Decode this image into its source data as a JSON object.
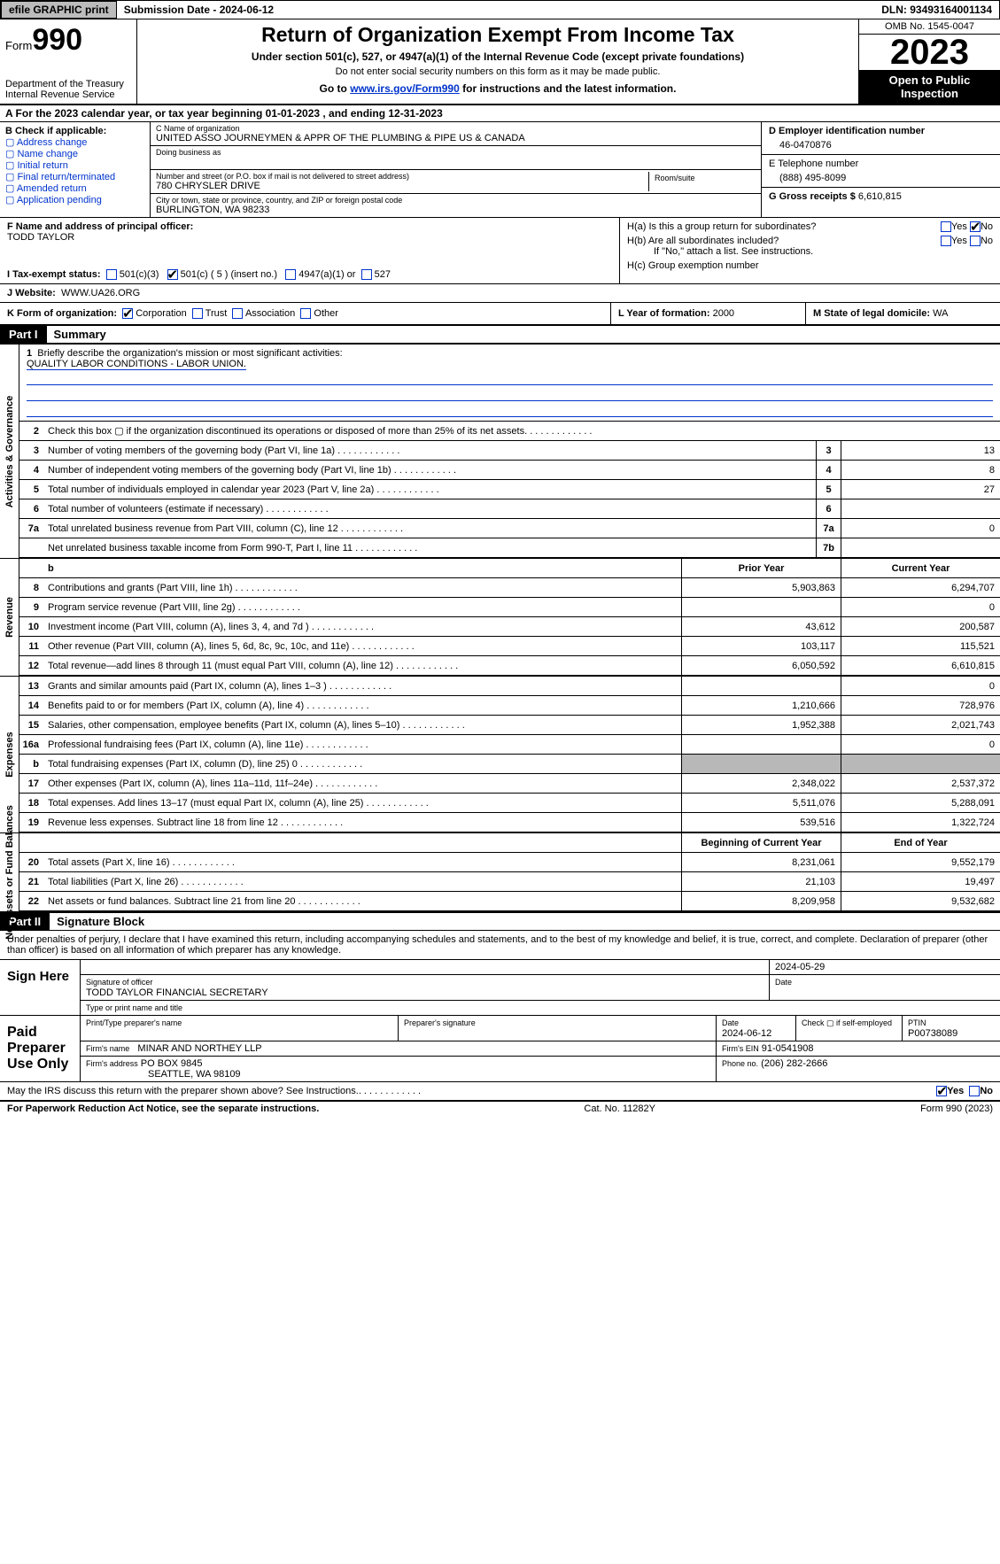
{
  "topbar": {
    "efile": "efile GRAPHIC print",
    "submission_label": "Submission Date - 2024-06-12",
    "dln_label": "DLN: 93493164001134"
  },
  "header": {
    "form_prefix": "Form",
    "form_number": "990",
    "dept": "Department of the Treasury\nInternal Revenue Service",
    "title": "Return of Organization Exempt From Income Tax",
    "sub": "Under section 501(c), 527, or 4947(a)(1) of the Internal Revenue Code (except private foundations)",
    "sub2": "Do not enter social security numbers on this form as it may be made public.",
    "goto_prefix": "Go to ",
    "goto_link": "www.irs.gov/Form990",
    "goto_suffix": " for instructions and the latest information.",
    "omb": "OMB No. 1545-0047",
    "year": "2023",
    "open": "Open to Public Inspection"
  },
  "rowA": "A For the 2023 calendar year, or tax year beginning 01-01-2023   , and ending 12-31-2023",
  "sectionB": {
    "title": "B Check if applicable:",
    "items": [
      "Address change",
      "Name change",
      "Initial return",
      "Final return/terminated",
      "Amended return",
      "Application pending"
    ]
  },
  "sectionC": {
    "name_label": "C Name of organization",
    "name": "UNITED ASSO JOURNEYMEN & APPR OF THE PLUMBING & PIPE US & CANADA",
    "dba": "Doing business as",
    "addr_label": "Number and street (or P.O. box if mail is not delivered to street address)",
    "room": "Room/suite",
    "addr": "780 CHRYSLER DRIVE",
    "city_label": "City or town, state or province, country, and ZIP or foreign postal code",
    "city": "BURLINGTON, WA  98233"
  },
  "sectionD": {
    "label": "D Employer identification number",
    "value": "46-0470876"
  },
  "sectionE": {
    "label": "E Telephone number",
    "value": "(888) 495-8099"
  },
  "sectionG": {
    "label": "G Gross receipts $",
    "value": "6,610,815"
  },
  "sectionF": {
    "label": "F  Name and address of principal officer:",
    "value": "TODD TAYLOR"
  },
  "sectionH": {
    "ha": "H(a)  Is this a group return for subordinates?",
    "hb": "H(b)  Are all subordinates included?",
    "hb_note": "If \"No,\" attach a list. See instructions.",
    "hc": "H(c)  Group exemption number",
    "yes": "Yes",
    "no": "No"
  },
  "sectionI": {
    "label": "I  Tax-exempt status:",
    "opts": [
      "501(c)(3)",
      "501(c) ( 5 ) (insert no.)",
      "4947(a)(1) or",
      "527"
    ],
    "checked_index": 1
  },
  "sectionJ": {
    "label": "J  Website:",
    "value": "WWW.UA26.ORG"
  },
  "sectionK": {
    "label": "K Form of organization:",
    "opts": [
      "Corporation",
      "Trust",
      "Association",
      "Other"
    ],
    "checked_index": 0
  },
  "sectionL": {
    "label": "L Year of formation:",
    "value": "2000"
  },
  "sectionM": {
    "label": "M State of legal domicile:",
    "value": "WA"
  },
  "part1": {
    "hdr": "Part I",
    "title": "Summary"
  },
  "mission": {
    "label": "Briefly describe the organization's mission or most significant activities:",
    "text": "QUALITY LABOR CONDITIONS - LABOR UNION."
  },
  "governance_lines": [
    {
      "n": "2",
      "desc": "Check this box  ▢  if the organization discontinued its operations or disposed of more than 25% of its net assets.",
      "box": "",
      "val": ""
    },
    {
      "n": "3",
      "desc": "Number of voting members of the governing body (Part VI, line 1a)",
      "box": "3",
      "val": "13"
    },
    {
      "n": "4",
      "desc": "Number of independent voting members of the governing body (Part VI, line 1b)",
      "box": "4",
      "val": "8"
    },
    {
      "n": "5",
      "desc": "Total number of individuals employed in calendar year 2023 (Part V, line 2a)",
      "box": "5",
      "val": "27"
    },
    {
      "n": "6",
      "desc": "Total number of volunteers (estimate if necessary)",
      "box": "6",
      "val": ""
    },
    {
      "n": "7a",
      "desc": "Total unrelated business revenue from Part VIII, column (C), line 12",
      "box": "7a",
      "val": "0"
    },
    {
      "n": "",
      "desc": "Net unrelated business taxable income from Form 990-T, Part I, line 11",
      "box": "7b",
      "val": ""
    }
  ],
  "revenue_header": {
    "prior": "Prior Year",
    "current": "Current Year"
  },
  "revenue_lines": [
    {
      "n": "8",
      "desc": "Contributions and grants (Part VIII, line 1h)",
      "prior": "5,903,863",
      "cur": "6,294,707"
    },
    {
      "n": "9",
      "desc": "Program service revenue (Part VIII, line 2g)",
      "prior": "",
      "cur": "0"
    },
    {
      "n": "10",
      "desc": "Investment income (Part VIII, column (A), lines 3, 4, and 7d )",
      "prior": "43,612",
      "cur": "200,587"
    },
    {
      "n": "11",
      "desc": "Other revenue (Part VIII, column (A), lines 5, 6d, 8c, 9c, 10c, and 11e)",
      "prior": "103,117",
      "cur": "115,521"
    },
    {
      "n": "12",
      "desc": "Total revenue—add lines 8 through 11 (must equal Part VIII, column (A), line 12)",
      "prior": "6,050,592",
      "cur": "6,610,815"
    }
  ],
  "expense_lines": [
    {
      "n": "13",
      "desc": "Grants and similar amounts paid (Part IX, column (A), lines 1–3 )",
      "prior": "",
      "cur": "0"
    },
    {
      "n": "14",
      "desc": "Benefits paid to or for members (Part IX, column (A), line 4)",
      "prior": "1,210,666",
      "cur": "728,976"
    },
    {
      "n": "15",
      "desc": "Salaries, other compensation, employee benefits (Part IX, column (A), lines 5–10)",
      "prior": "1,952,388",
      "cur": "2,021,743"
    },
    {
      "n": "16a",
      "desc": "Professional fundraising fees (Part IX, column (A), line 11e)",
      "prior": "",
      "cur": "0"
    },
    {
      "n": "b",
      "desc": "Total fundraising expenses (Part IX, column (D), line 25) 0",
      "prior": "grey",
      "cur": "grey"
    },
    {
      "n": "17",
      "desc": "Other expenses (Part IX, column (A), lines 11a–11d, 11f–24e)",
      "prior": "2,348,022",
      "cur": "2,537,372"
    },
    {
      "n": "18",
      "desc": "Total expenses. Add lines 13–17 (must equal Part IX, column (A), line 25)",
      "prior": "5,511,076",
      "cur": "5,288,091"
    },
    {
      "n": "19",
      "desc": "Revenue less expenses. Subtract line 18 from line 12",
      "prior": "539,516",
      "cur": "1,322,724"
    }
  ],
  "netassets_header": {
    "begin": "Beginning of Current Year",
    "end": "End of Year"
  },
  "netassets_lines": [
    {
      "n": "20",
      "desc": "Total assets (Part X, line 16)",
      "prior": "8,231,061",
      "cur": "9,552,179"
    },
    {
      "n": "21",
      "desc": "Total liabilities (Part X, line 26)",
      "prior": "21,103",
      "cur": "19,497"
    },
    {
      "n": "22",
      "desc": "Net assets or fund balances. Subtract line 21 from line 20",
      "prior": "8,209,958",
      "cur": "9,532,682"
    }
  ],
  "part2": {
    "hdr": "Part II",
    "title": "Signature Block"
  },
  "sig_intro": "Under penalties of perjury, I declare that I have examined this return, including accompanying schedules and statements, and to the best of my knowledge and belief, it is true, correct, and complete. Declaration of preparer (other than officer) is based on all information of which preparer has any knowledge.",
  "sign_here": {
    "label": "Sign Here",
    "date": "2024-05-29",
    "sig_label": "Signature of officer",
    "name": "TODD TAYLOR FINANCIAL SECRETARY",
    "type_label": "Type or print name and title",
    "date_label": "Date"
  },
  "preparer": {
    "label": "Paid Preparer Use Only",
    "cols": {
      "print_name": "Print/Type preparer's name",
      "sig": "Preparer's signature",
      "date_label": "Date",
      "date": "2024-06-12",
      "check_label": "Check ▢ if self-employed",
      "ptin_label": "PTIN",
      "ptin": "P00738089"
    },
    "firm_name_label": "Firm's name",
    "firm_name": "MINAR AND NORTHEY LLP",
    "firm_ein_label": "Firm's EIN",
    "firm_ein": "91-0541908",
    "firm_addr_label": "Firm's address",
    "firm_addr1": "PO BOX 9845",
    "firm_addr2": "SEATTLE, WA  98109",
    "phone_label": "Phone no.",
    "phone": "(206) 282-2666"
  },
  "discuss": {
    "text": "May the IRS discuss this return with the preparer shown above? See Instructions.",
    "yes": "Yes",
    "no": "No"
  },
  "footer": {
    "left": "For Paperwork Reduction Act Notice, see the separate instructions.",
    "cat": "Cat. No. 11282Y",
    "right": "Form 990 (2023)"
  },
  "side_labels": {
    "gov": "Activities & Governance",
    "rev": "Revenue",
    "exp": "Expenses",
    "net": "Net Assets or Fund Balances"
  },
  "colors": {
    "link": "#0033cc",
    "grey": "#b8b8b8",
    "black": "#000000"
  }
}
